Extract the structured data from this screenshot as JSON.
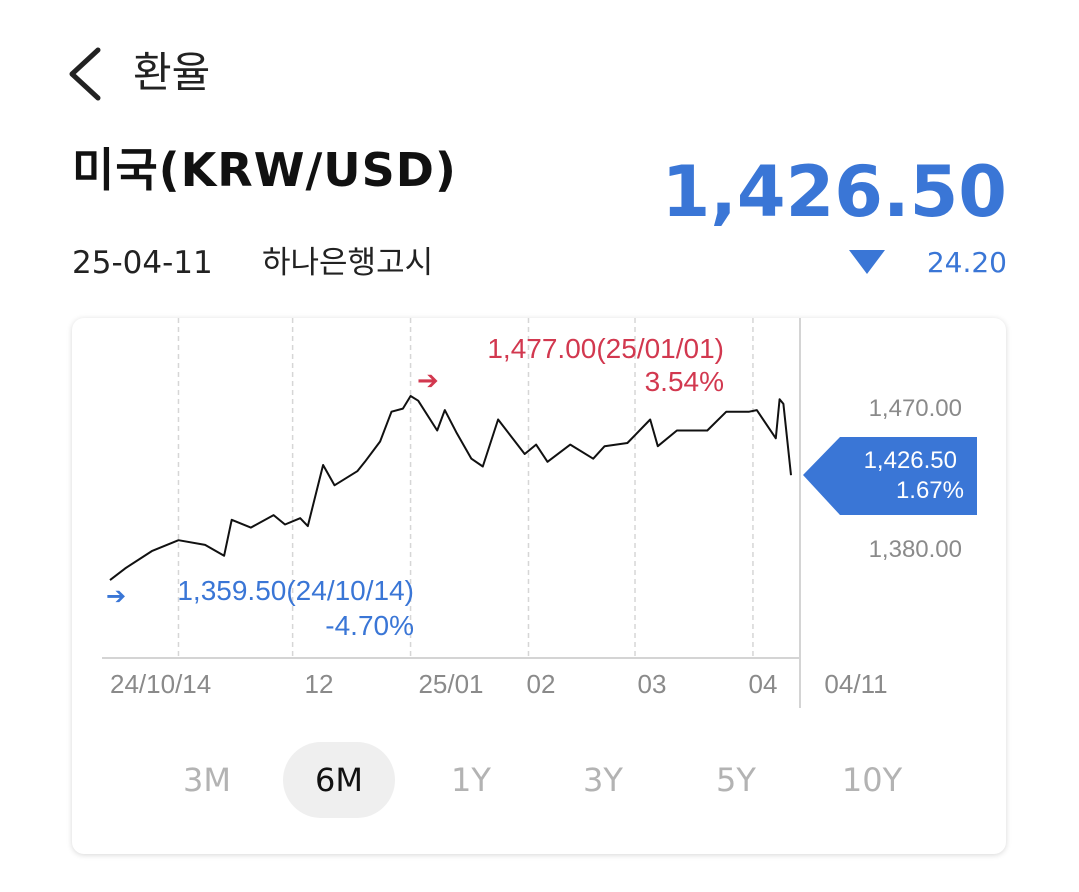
{
  "header": {
    "title": "환율"
  },
  "pair": {
    "name": "미국(KRW/USD)",
    "rate": "1,426.50",
    "date": "25-04-11",
    "source": "하나은행고시",
    "change": "24.20"
  },
  "colors": {
    "accent": "#3a76d6",
    "high": "#d2384f",
    "line": "#111111"
  },
  "chart_data": {
    "type": "line",
    "x": [
      "24/10/14",
      "24/10/18",
      "24/10/25",
      "24/11/01",
      "24/11/08",
      "24/11/13",
      "24/11/15",
      "24/11/20",
      "24/11/26",
      "24/11/29",
      "24/12/03",
      "24/12/05",
      "24/12/09",
      "24/12/12",
      "24/12/18",
      "24/12/20",
      "24/12/24",
      "24/12/27",
      "24/12/30",
      "25/01/01",
      "25/01/03",
      "25/01/08",
      "25/01/10",
      "25/01/13",
      "25/01/17",
      "25/01/20",
      "25/01/24",
      "25/01/31",
      "25/02/03",
      "25/02/06",
      "25/02/12",
      "25/02/18",
      "25/02/21",
      "25/02/27",
      "25/03/05",
      "25/03/07",
      "25/03/12",
      "25/03/20",
      "25/03/25",
      "25/03/31",
      "25/04/02",
      "25/04/07",
      "25/04/08",
      "25/04/09",
      "25/04/11"
    ],
    "y": [
      1359.5,
      1367,
      1378,
      1385,
      1382,
      1375,
      1398,
      1393,
      1401,
      1395,
      1399,
      1394,
      1433,
      1420,
      1429,
      1435,
      1448,
      1467,
      1469,
      1477,
      1474,
      1455,
      1468,
      1454,
      1437,
      1432,
      1462,
      1440,
      1446,
      1435,
      1446,
      1437,
      1445,
      1447,
      1462,
      1445,
      1455,
      1455,
      1467,
      1467,
      1468,
      1450,
      1475,
      1472,
      1426.5
    ],
    "y_ticks": [
      "1,470.00",
      "1,380.00"
    ],
    "x_ticks": [
      "24/10/14",
      "12",
      "25/01",
      "02",
      "03",
      "04",
      "04/11"
    ],
    "high": {
      "label": "1,477.00(25/01/01)",
      "pct": "3.54%",
      "arrow": "➔"
    },
    "low": {
      "label": "1,359.50(24/10/14)",
      "pct": "-4.70%",
      "arrow": "➔"
    },
    "current": {
      "value": "1,426.50",
      "pct": "1.67%"
    },
    "grid": "vertical-dashed"
  },
  "periods": [
    "3M",
    "6M",
    "1Y",
    "3Y",
    "5Y",
    "10Y"
  ],
  "active_period": "6M"
}
